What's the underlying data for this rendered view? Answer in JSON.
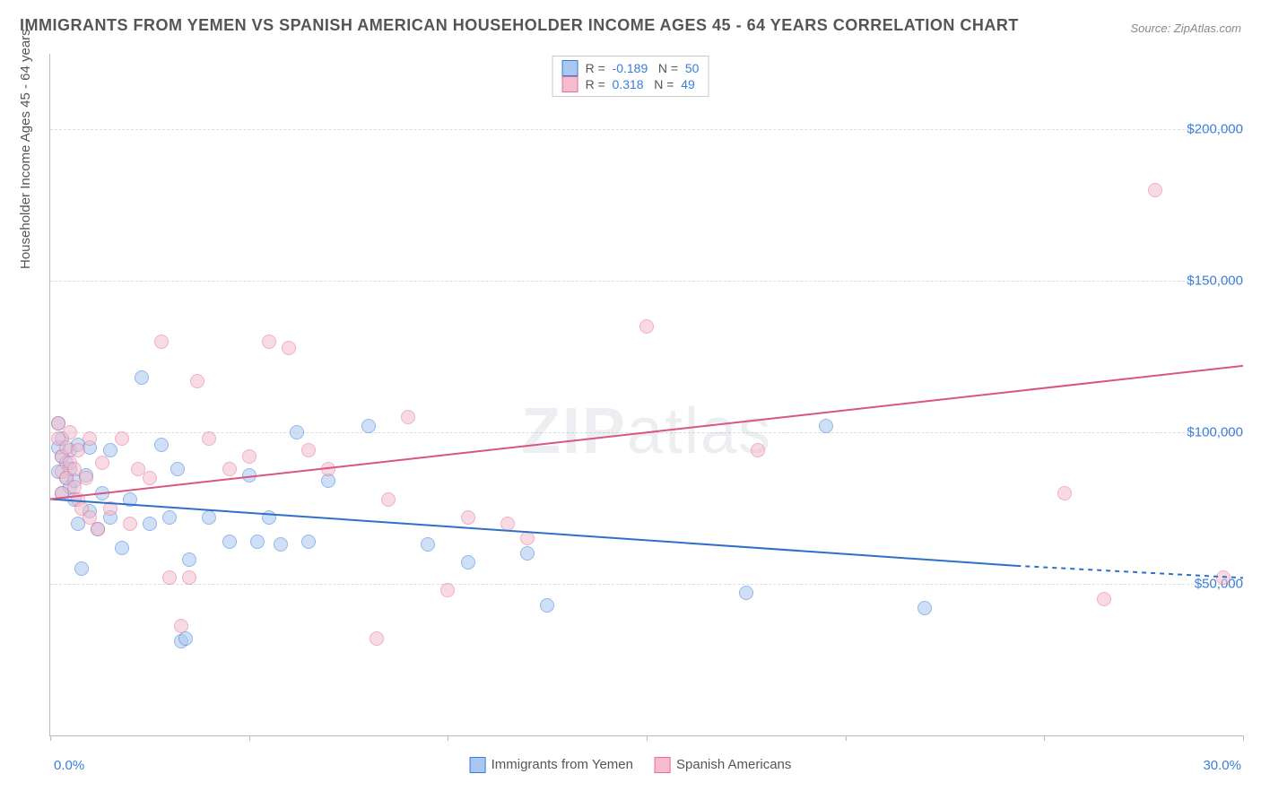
{
  "title": "IMMIGRANTS FROM YEMEN VS SPANISH AMERICAN HOUSEHOLDER INCOME AGES 45 - 64 YEARS CORRELATION CHART",
  "source": "Source: ZipAtlas.com",
  "ylabel": "Householder Income Ages 45 - 64 years",
  "watermark_bold": "ZIP",
  "watermark_thin": "atlas",
  "chart": {
    "type": "scatter",
    "background_color": "#ffffff",
    "grid_color": "#dddddd",
    "axis_color": "#bbbbbb",
    "text_color": "#555555",
    "value_color": "#3b7dd8",
    "xlim": [
      0,
      30
    ],
    "ylim": [
      0,
      225000
    ],
    "x_ticks": [
      0,
      5,
      10,
      15,
      20,
      25,
      30
    ],
    "x_tick_labels": {
      "left": "0.0%",
      "right": "30.0%"
    },
    "y_gridlines": [
      50000,
      100000,
      150000,
      200000
    ],
    "y_tick_labels": [
      "$50,000",
      "$100,000",
      "$150,000",
      "$200,000"
    ],
    "marker_size": 14,
    "marker_opacity": 0.55,
    "line_width": 2
  },
  "series": [
    {
      "name": "Immigrants from Yemen",
      "fill_color": "#a9c8ef",
      "stroke_color": "#3b7dd8",
      "line_color": "#2f6fc7",
      "r": "-0.189",
      "n": "50",
      "trend": {
        "x1": 0.0,
        "y1": 78000,
        "x2": 24.3,
        "y2": 56000,
        "dash_x2": 30.0,
        "dash_y2": 52000
      },
      "points": [
        [
          0.2,
          95000
        ],
        [
          0.2,
          103000
        ],
        [
          0.2,
          87000
        ],
        [
          0.3,
          92000
        ],
        [
          0.3,
          80000
        ],
        [
          0.3,
          98000
        ],
        [
          0.4,
          85000
        ],
        [
          0.4,
          90000
        ],
        [
          0.5,
          82000
        ],
        [
          0.5,
          88000
        ],
        [
          0.5,
          94000
        ],
        [
          0.6,
          78000
        ],
        [
          0.6,
          84000
        ],
        [
          0.7,
          70000
        ],
        [
          0.7,
          96000
        ],
        [
          0.8,
          55000
        ],
        [
          0.9,
          86000
        ],
        [
          1.0,
          74000
        ],
        [
          1.0,
          95000
        ],
        [
          1.2,
          68000
        ],
        [
          1.3,
          80000
        ],
        [
          1.5,
          72000
        ],
        [
          1.5,
          94000
        ],
        [
          1.8,
          62000
        ],
        [
          2.0,
          78000
        ],
        [
          2.3,
          118000
        ],
        [
          2.5,
          70000
        ],
        [
          2.8,
          96000
        ],
        [
          3.0,
          72000
        ],
        [
          3.2,
          88000
        ],
        [
          3.3,
          31000
        ],
        [
          3.4,
          32000
        ],
        [
          3.5,
          58000
        ],
        [
          4.0,
          72000
        ],
        [
          4.5,
          64000
        ],
        [
          5.0,
          86000
        ],
        [
          5.2,
          64000
        ],
        [
          5.5,
          72000
        ],
        [
          5.8,
          63000
        ],
        [
          6.2,
          100000
        ],
        [
          6.5,
          64000
        ],
        [
          7.0,
          84000
        ],
        [
          8.0,
          102000
        ],
        [
          9.5,
          63000
        ],
        [
          10.5,
          57000
        ],
        [
          12.0,
          60000
        ],
        [
          12.5,
          43000
        ],
        [
          17.5,
          47000
        ],
        [
          19.5,
          102000
        ],
        [
          22.0,
          42000
        ]
      ]
    },
    {
      "name": "Spanish Americans",
      "fill_color": "#f4bccc",
      "stroke_color": "#e76f95",
      "line_color": "#d95583",
      "r": "0.318",
      "n": "49",
      "trend": {
        "x1": 0.0,
        "y1": 78000,
        "x2": 30.0,
        "y2": 122000
      },
      "points": [
        [
          0.2,
          98000
        ],
        [
          0.2,
          103000
        ],
        [
          0.3,
          92000
        ],
        [
          0.3,
          87000
        ],
        [
          0.3,
          80000
        ],
        [
          0.4,
          95000
        ],
        [
          0.4,
          85000
        ],
        [
          0.5,
          90000
        ],
        [
          0.5,
          100000
        ],
        [
          0.6,
          82000
        ],
        [
          0.6,
          88000
        ],
        [
          0.7,
          78000
        ],
        [
          0.7,
          94000
        ],
        [
          0.8,
          75000
        ],
        [
          0.9,
          85000
        ],
        [
          1.0,
          72000
        ],
        [
          1.0,
          98000
        ],
        [
          1.2,
          68000
        ],
        [
          1.3,
          90000
        ],
        [
          1.5,
          75000
        ],
        [
          1.8,
          98000
        ],
        [
          2.0,
          70000
        ],
        [
          2.2,
          88000
        ],
        [
          2.5,
          85000
        ],
        [
          2.8,
          130000
        ],
        [
          3.0,
          52000
        ],
        [
          3.3,
          36000
        ],
        [
          3.5,
          52000
        ],
        [
          3.7,
          117000
        ],
        [
          4.0,
          98000
        ],
        [
          4.5,
          88000
        ],
        [
          5.0,
          92000
        ],
        [
          5.5,
          130000
        ],
        [
          6.0,
          128000
        ],
        [
          6.5,
          94000
        ],
        [
          7.0,
          88000
        ],
        [
          8.2,
          32000
        ],
        [
          8.5,
          78000
        ],
        [
          9.0,
          105000
        ],
        [
          10.0,
          48000
        ],
        [
          10.5,
          72000
        ],
        [
          11.5,
          70000
        ],
        [
          12.0,
          65000
        ],
        [
          15.0,
          135000
        ],
        [
          17.8,
          94000
        ],
        [
          25.5,
          80000
        ],
        [
          26.5,
          45000
        ],
        [
          27.8,
          180000
        ],
        [
          29.5,
          52000
        ]
      ]
    }
  ],
  "legend_bottom": [
    {
      "label": "Immigrants from Yemen",
      "fill": "#a9c8ef",
      "stroke": "#3b7dd8"
    },
    {
      "label": "Spanish Americans",
      "fill": "#f4bccc",
      "stroke": "#e76f95"
    }
  ]
}
